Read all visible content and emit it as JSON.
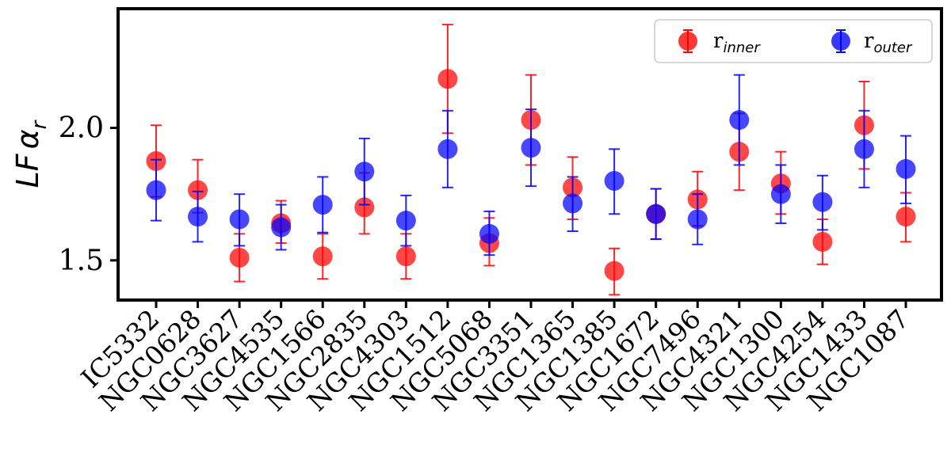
{
  "chart_data": {
    "type": "scatter",
    "title": "",
    "xlabel": "",
    "ylabel_main": "LF",
    "ylabel_symbol": "α",
    "ylabel_sub": "r",
    "ylim": [
      1.35,
      2.45
    ],
    "yticks": [
      1.5,
      2.0
    ],
    "ytick_labels": [
      "1.5",
      "2.0"
    ],
    "grid": false,
    "legend_position": "top-right",
    "categories": [
      "IC5332",
      "NGC0628",
      "NGC3627",
      "NGC4535",
      "NGC1566",
      "NGC2835",
      "NGC4303",
      "NGC1512",
      "NGC5068",
      "NGC3351",
      "NGC1365",
      "NGC1385",
      "NGC1672",
      "NGC7496",
      "NGC4321",
      "NGC1300",
      "NGC4254",
      "NGC1433",
      "NGC1087"
    ],
    "series": [
      {
        "name": "r_inner",
        "legend_main": "r",
        "legend_sub": "inner",
        "color": "#ff0000",
        "values": [
          1.875,
          1.765,
          1.51,
          1.64,
          1.515,
          1.7,
          1.515,
          2.185,
          1.565,
          2.03,
          1.775,
          1.46,
          1.675,
          1.73,
          1.91,
          1.79,
          1.57,
          2.01,
          1.665
        ],
        "err_low": [
          0.135,
          0.085,
          0.09,
          0.075,
          0.085,
          0.1,
          0.085,
          0.205,
          0.085,
          0.17,
          0.12,
          0.09,
          0.095,
          0.1,
          0.145,
          0.115,
          0.085,
          0.165,
          0.095
        ],
        "err_high": [
          0.135,
          0.115,
          0.09,
          0.085,
          0.085,
          0.13,
          0.085,
          0.205,
          0.095,
          0.17,
          0.115,
          0.085,
          0.095,
          0.105,
          0.145,
          0.12,
          0.085,
          0.165,
          0.09
        ]
      },
      {
        "name": "r_outer",
        "legend_main": "r",
        "legend_sub": "outer",
        "color": "#0000ff",
        "values": [
          1.765,
          1.665,
          1.655,
          1.625,
          1.71,
          1.835,
          1.65,
          1.92,
          1.6,
          1.925,
          1.715,
          1.8,
          1.675,
          1.655,
          2.03,
          1.75,
          1.72,
          1.92,
          1.845
        ],
        "err_low": [
          0.115,
          0.095,
          0.1,
          0.085,
          0.105,
          0.125,
          0.095,
          0.145,
          0.08,
          0.145,
          0.105,
          0.125,
          0.095,
          0.095,
          0.17,
          0.11,
          0.105,
          0.145,
          0.13
        ],
        "err_high": [
          0.115,
          0.095,
          0.095,
          0.085,
          0.105,
          0.125,
          0.095,
          0.145,
          0.085,
          0.145,
          0.1,
          0.12,
          0.095,
          0.095,
          0.17,
          0.11,
          0.1,
          0.145,
          0.125
        ]
      }
    ]
  }
}
